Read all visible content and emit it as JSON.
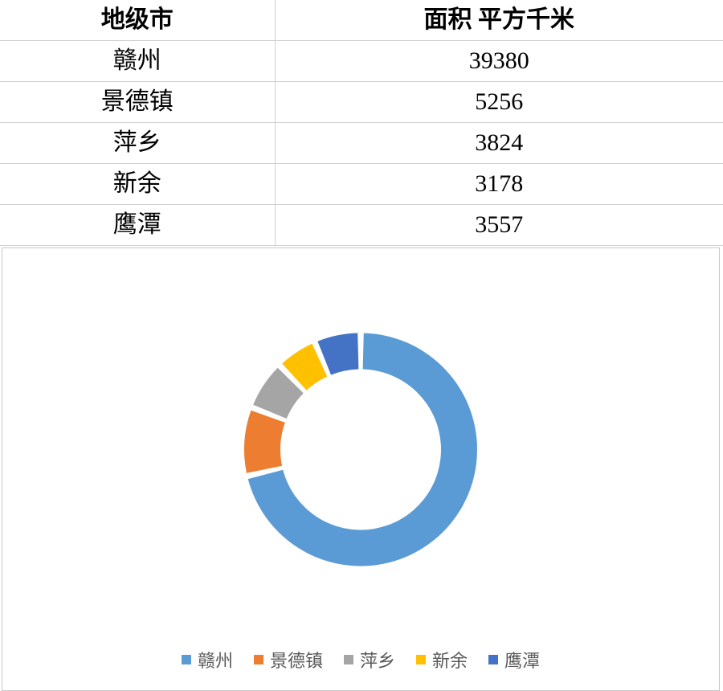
{
  "table": {
    "columns": [
      "地级市",
      "面积 平方千米"
    ],
    "rows": [
      [
        "赣州",
        "39380"
      ],
      [
        "景德镇",
        "5256"
      ],
      [
        "萍乡",
        "3824"
      ],
      [
        "新余",
        "3178"
      ],
      [
        "鹰潭",
        "3557"
      ]
    ],
    "header_fontsize": 30,
    "cell_fontsize": 30,
    "border_color": "#d0d0d0",
    "text_color": "#000000",
    "background_color": "#ffffff"
  },
  "chart": {
    "type": "donut",
    "labels": [
      "赣州",
      "景德镇",
      "萍乡",
      "新余",
      "鹰潭"
    ],
    "values": [
      39380,
      5256,
      3824,
      3178,
      3557
    ],
    "colors": [
      "#5b9bd5",
      "#ed7d31",
      "#a5a5a5",
      "#ffc000",
      "#4472c4"
    ],
    "background_color": "#ffffff",
    "border_color": "#c8c8c8",
    "slice_gap_color": "#ffffff",
    "slice_gap_deg": 3,
    "outer_radius": 145,
    "inner_radius": 100,
    "start_angle_deg": -90,
    "legend": {
      "position": "bottom",
      "fontsize": 22,
      "text_color": "#595959",
      "swatch_size": 12
    }
  }
}
